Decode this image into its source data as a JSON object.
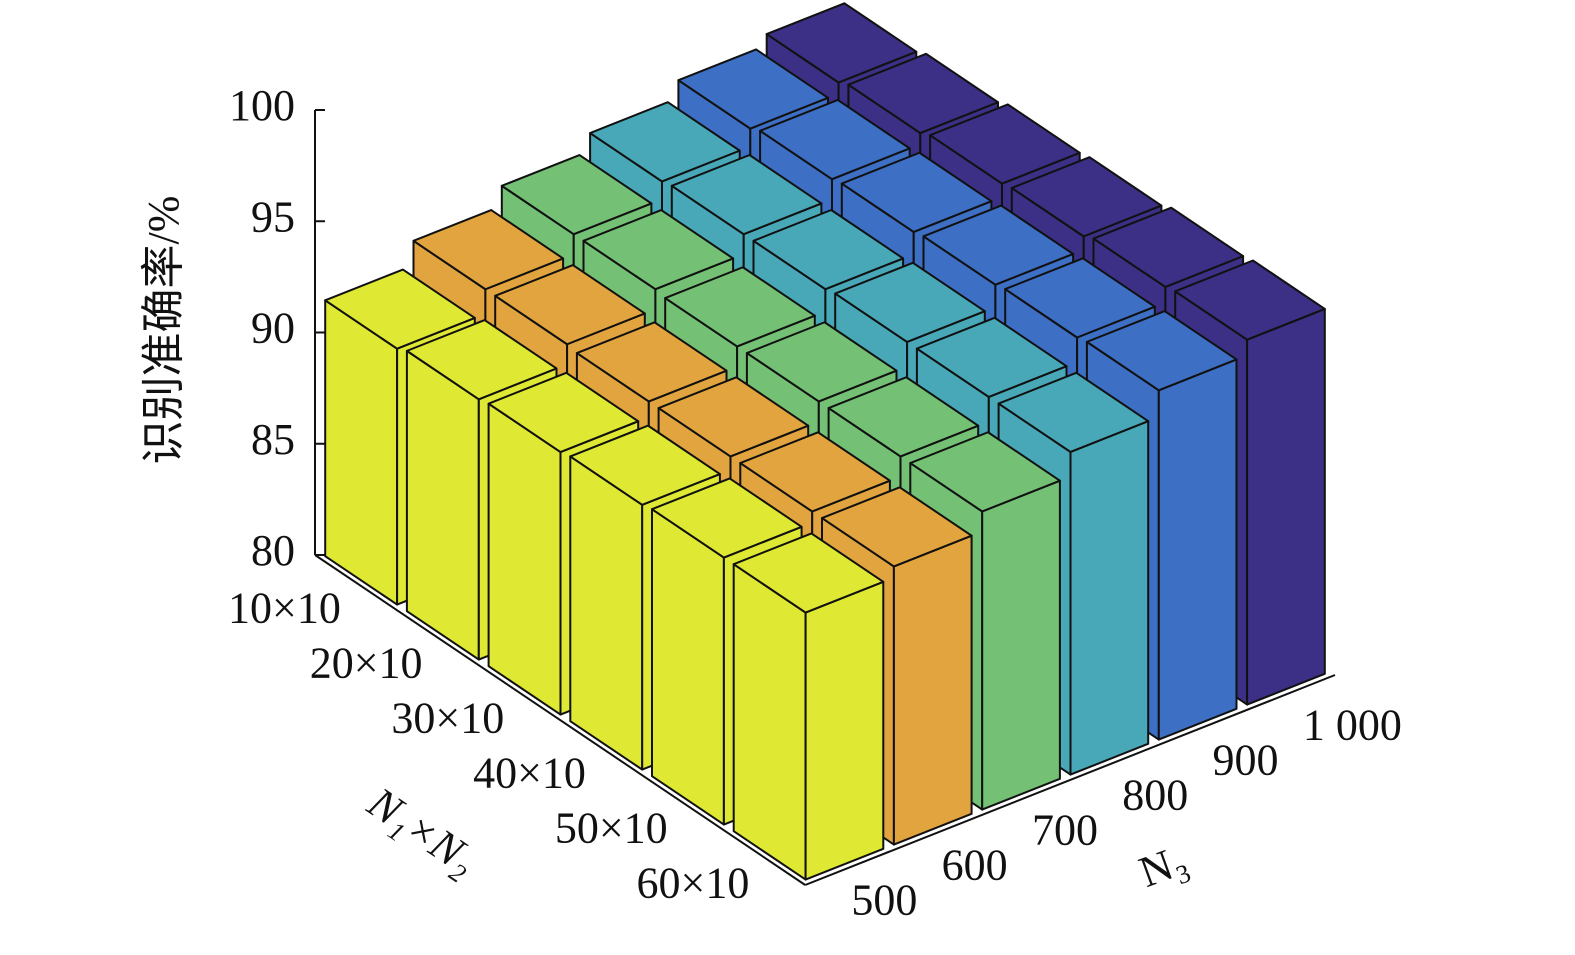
{
  "chart_data": {
    "type": "bar3d",
    "zlabel": "识别准确率/%",
    "xlabel": "N₁×N₂",
    "ylabel": "N₃",
    "categories": [
      "10×10",
      "20×10",
      "30×10",
      "40×10",
      "50×10",
      "60×10"
    ],
    "series": [
      {
        "name": "500",
        "color": "#dfe832",
        "values": [
          91.5,
          91.7,
          91.8,
          91.9,
          92.0,
          92.0
        ]
      },
      {
        "name": "600",
        "color": "#e2a43f",
        "values": [
          92.6,
          92.6,
          92.5,
          92.5,
          92.5,
          92.5
        ]
      },
      {
        "name": "700",
        "color": "#74c074",
        "values": [
          93.5,
          93.5,
          93.4,
          93.4,
          93.4,
          93.4
        ]
      },
      {
        "name": "800",
        "color": "#48a8b8",
        "values": [
          94.3,
          94.4,
          94.4,
          94.5,
          94.5,
          94.5
        ]
      },
      {
        "name": "900",
        "color": "#3d6fc4",
        "values": [
          95.1,
          95.3,
          95.4,
          95.5,
          95.6,
          95.7
        ]
      },
      {
        "name": "1 000",
        "color": "#3b2f86",
        "values": [
          95.6,
          95.8,
          96.0,
          96.1,
          96.3,
          96.4
        ]
      }
    ],
    "zlim": [
      80,
      100
    ],
    "zticks": [
      80,
      85,
      90,
      95,
      100
    ]
  }
}
